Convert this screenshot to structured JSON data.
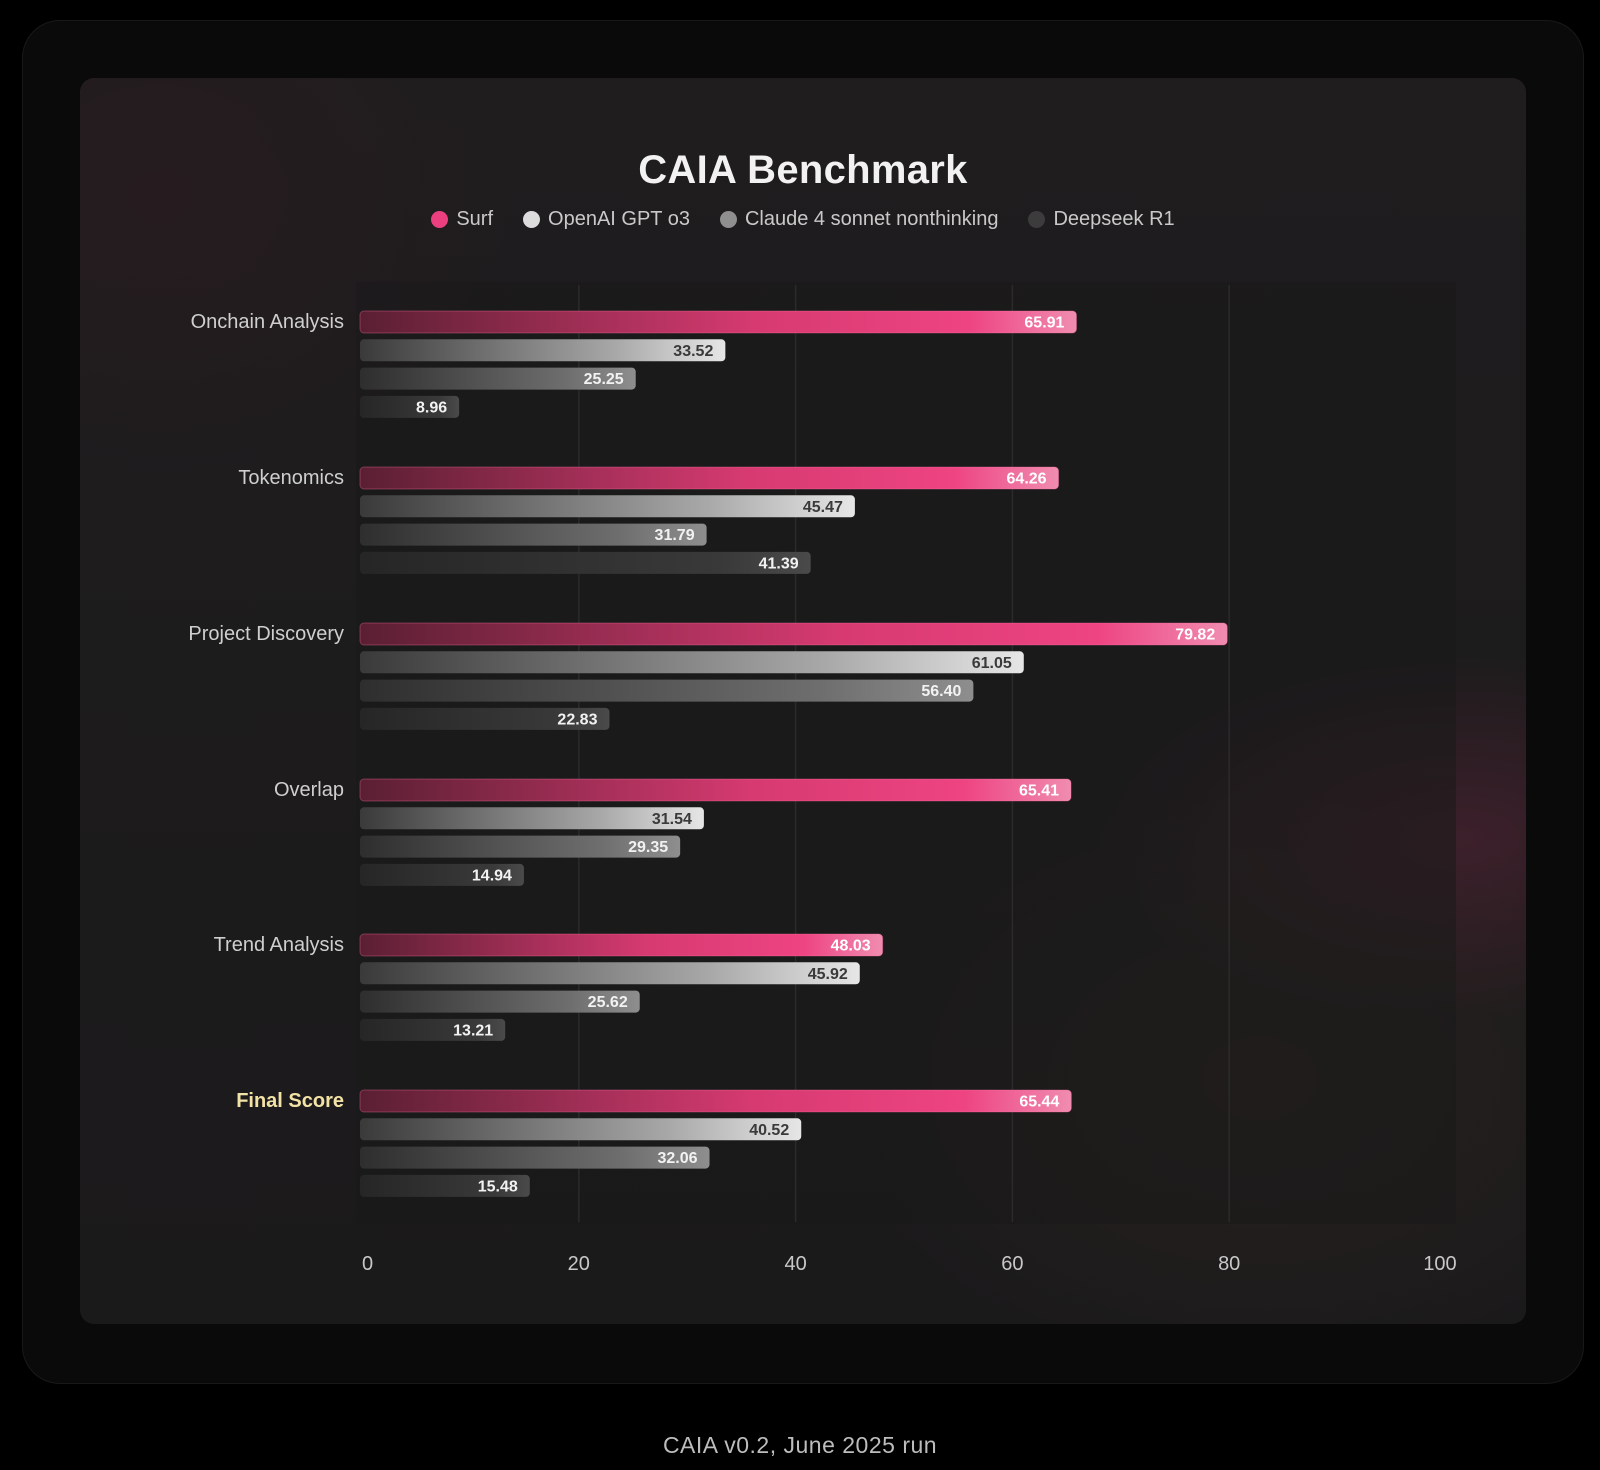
{
  "footer": "CAIA v0.2, June 2025 run",
  "chart_data": {
    "type": "bar",
    "orientation": "horizontal",
    "title": "CAIA Benchmark",
    "legend_position": "top-center",
    "grid": true,
    "xlim": [
      0,
      100
    ],
    "xticks": [
      "0",
      "20",
      "40",
      "60",
      "80",
      "100"
    ],
    "categories": [
      "Onchain Analysis",
      "Tokenomics",
      "Project Discovery",
      "Overlap",
      "Trend Analysis",
      "Final Score"
    ],
    "highlight_category": "Final Score",
    "series": [
      {
        "name": "Surf",
        "color": "#ec3f7f",
        "values": [
          65.91,
          64.26,
          79.82,
          65.41,
          48.03,
          65.44
        ]
      },
      {
        "name": "OpenAI GPT o3",
        "color": "#d9d9d9",
        "values": [
          33.52,
          45.47,
          61.05,
          31.54,
          45.92,
          40.52
        ]
      },
      {
        "name": "Claude 4 sonnet nonthinking",
        "color": "#8f8f8f",
        "values": [
          25.25,
          31.79,
          56.4,
          29.35,
          25.62,
          32.06
        ]
      },
      {
        "name": "Deepseek R1",
        "color": "#3c3c3c",
        "values": [
          8.96,
          41.39,
          22.83,
          14.94,
          13.21,
          15.48
        ]
      }
    ],
    "labels": [
      [
        "65.91",
        "64.26",
        "79.82",
        "65.41",
        "48.03",
        "65.44"
      ],
      [
        "33.52",
        "45.47",
        "61.05",
        "31.54",
        "45.92",
        "40.52"
      ],
      [
        "25.25",
        "31.79",
        "56.40",
        "29.35",
        "25.62",
        "32.06"
      ],
      [
        "8.96",
        "41.39",
        "22.83",
        "14.94",
        "13.21",
        "15.48"
      ]
    ]
  }
}
